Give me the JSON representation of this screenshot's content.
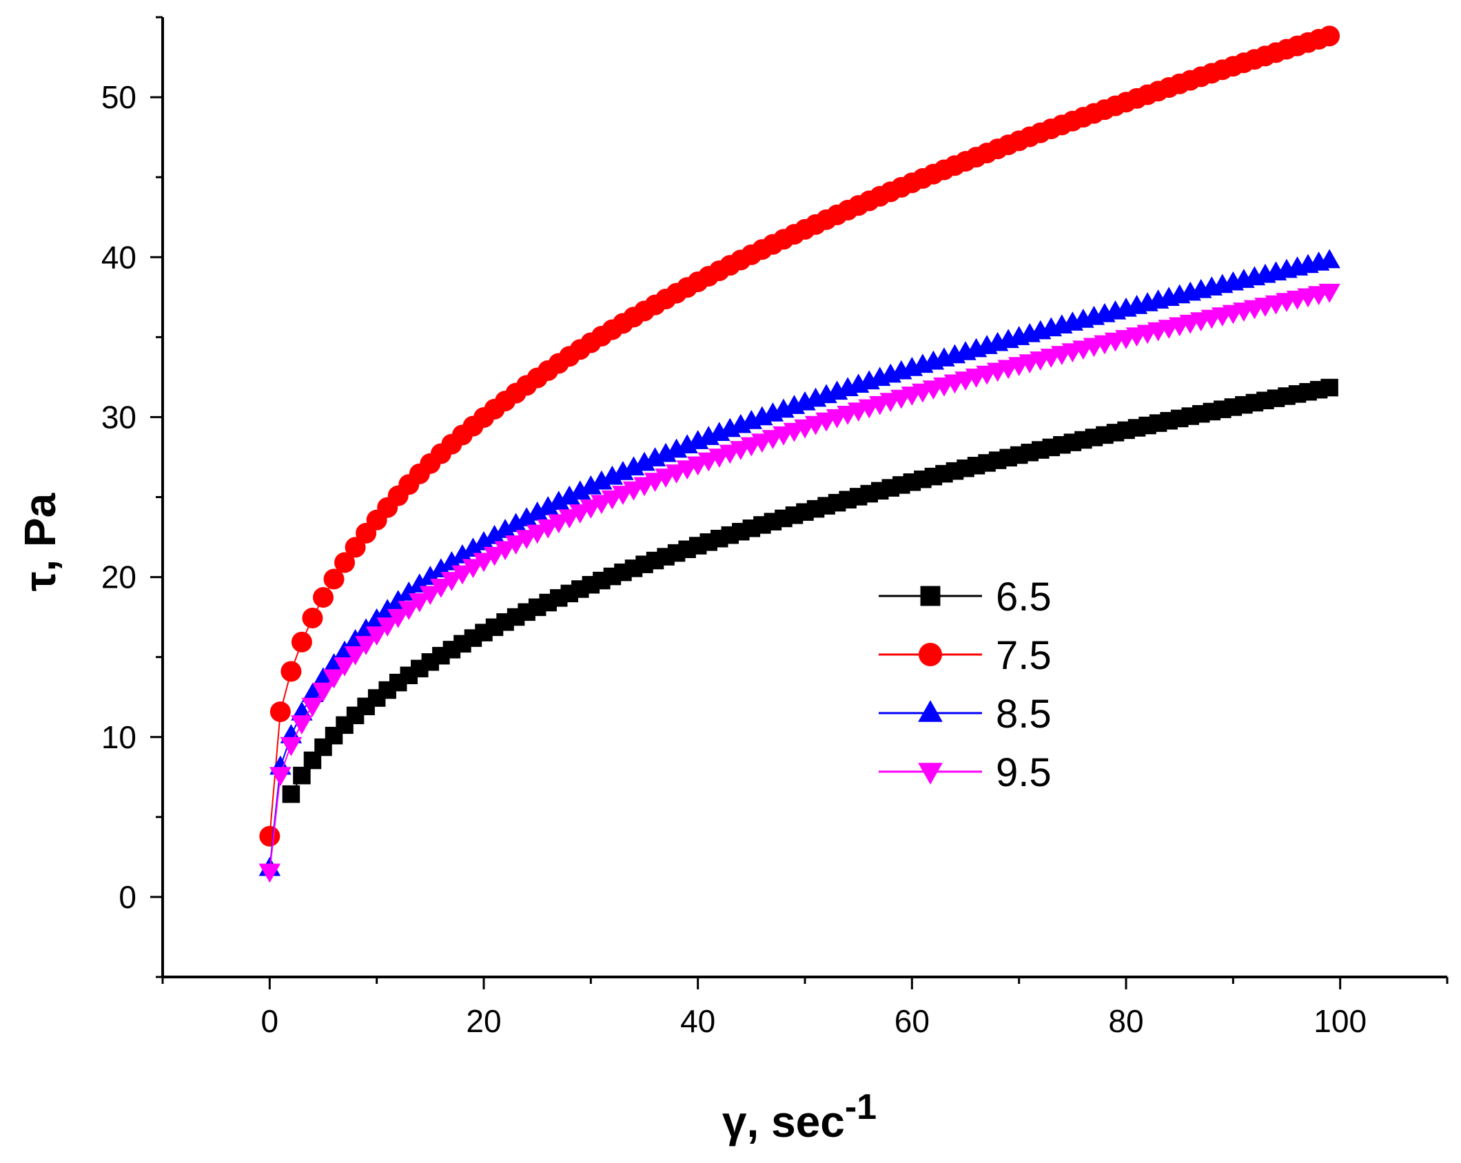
{
  "chart_data": {
    "type": "line",
    "xlabel": {
      "symbol": "γ",
      "text": ", sec",
      "sup": "-1"
    },
    "ylabel": "τ, Pa",
    "xlim": [
      -10,
      110
    ],
    "ylim": [
      -5,
      55
    ],
    "xticks": [
      0,
      20,
      40,
      60,
      80,
      100
    ],
    "yticks": [
      0,
      10,
      20,
      30,
      40,
      50
    ],
    "x": {
      "start": 0,
      "end": 99,
      "step": 1
    },
    "series": [
      {
        "name": "6.5",
        "color": "#000000",
        "marker": "square",
        "model": {
          "k": 4.84,
          "n": 0.41,
          "tau0": 0.0,
          "min_x": 2
        }
      },
      {
        "name": "7.5",
        "color": "#ff0000",
        "marker": "circle",
        "model": {
          "k": 7.78,
          "n": 0.405,
          "tau0": 3.8,
          "min_x": 0
        }
      },
      {
        "name": "8.5",
        "color": "#0000ff",
        "marker": "triangle-up",
        "model": {
          "k": 6.33,
          "n": 0.39,
          "tau0": 1.8,
          "min_x": 0
        }
      },
      {
        "name": "9.5",
        "color": "#ff00ff",
        "marker": "triangle-down",
        "model": {
          "k": 6.04,
          "n": 0.39,
          "tau0": 1.6,
          "min_x": 0
        }
      }
    ],
    "legend_position": "center-right"
  }
}
